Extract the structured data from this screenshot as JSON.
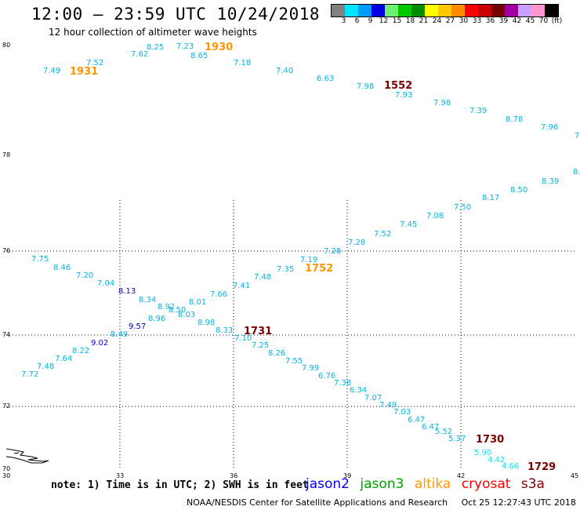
{
  "title": "12:00 – 23:59 UTC 10/24/2018",
  "subtitle": "12 hour collection of altimeter wave heights",
  "color_scale": {
    "unit": "(ft)",
    "labels": [
      "3",
      "6",
      "9",
      "12",
      "15",
      "18",
      "21",
      "24",
      "27",
      "30",
      "33",
      "36",
      "39",
      "42",
      "45",
      "70"
    ],
    "colors": [
      "#808080",
      "#00e5ff",
      "#009cff",
      "#0000e0",
      "#70f070",
      "#00c800",
      "#008c00",
      "#ffff00",
      "#ffc800",
      "#ff8c00",
      "#ff0000",
      "#c80000",
      "#780000",
      "#a000a0",
      "#c8a0ff",
      "#ff96d2",
      "#000000"
    ]
  },
  "map": {
    "lon_ticks": [
      "30",
      "33",
      "36",
      "39",
      "42",
      "45"
    ],
    "lat_ticks": [
      "70",
      "72",
      "74",
      "76",
      "78",
      "80"
    ],
    "readings": {
      "track_1931": [
        "7.49",
        "7.52",
        "7.62",
        "8.25",
        "7.23",
        "8.65",
        "7.18",
        "7.40",
        "6.63",
        "7.98",
        "7.93",
        "7.98",
        "7.39",
        "8.78",
        "7.96",
        "7.",
        "8.",
        "8.39",
        "8.50",
        "8.17",
        "7.50",
        "7.08",
        "7.45",
        "7.52",
        "7.28",
        "7.28",
        "7.19",
        "7.35",
        "7.48",
        "7.41",
        "7.66",
        "8.01",
        "8.92",
        "8.50",
        "8.03",
        "8.98",
        "8.33"
      ],
      "track_1731_upper": [
        "7.75",
        "8.46",
        "7.20",
        "7.04",
        "8.34",
        "8.96"
      ],
      "track_1731_lower": [
        "7.72",
        "7.48",
        "7.64",
        "8.22",
        "8.49",
        "7.10",
        "7.25",
        "8.26",
        "7.55",
        "7.99",
        "6.76",
        "7.38",
        "6.34",
        "7.07",
        "7.49",
        "7.03",
        "6.47",
        "6.47",
        "5.52",
        "5.37"
      ],
      "track_1730": [
        "5.90",
        "4.42",
        "4.66"
      ],
      "jason2": [
        "8.13",
        "9.57",
        "9.02"
      ]
    },
    "time_labels": [
      "1931",
      "1930",
      "1552",
      "1752",
      "1731",
      "1730",
      "1729"
    ],
    "colors": {
      "cyan_reading": "#00b4e6",
      "jason2": "#0000c8",
      "altika": "#ff9600",
      "cryosat": "#780000",
      "grid": "#000000"
    }
  },
  "note": "note: 1) Time is in UTC; 2) SWH is in feet",
  "legend": [
    {
      "label": "jason2",
      "color": "#0000ff"
    },
    {
      "label": "jason3",
      "color": "#00a000"
    },
    {
      "label": "altika",
      "color": "#ff9600"
    },
    {
      "label": "cryosat",
      "color": "#ff0000"
    },
    {
      "label": "s3a",
      "color": "#800000"
    }
  ],
  "footer": {
    "credit": "NOAA/NESDIS Center for Satellite Applications and Research",
    "timestamp": "Oct 25 12:27:43 UTC 2018"
  }
}
